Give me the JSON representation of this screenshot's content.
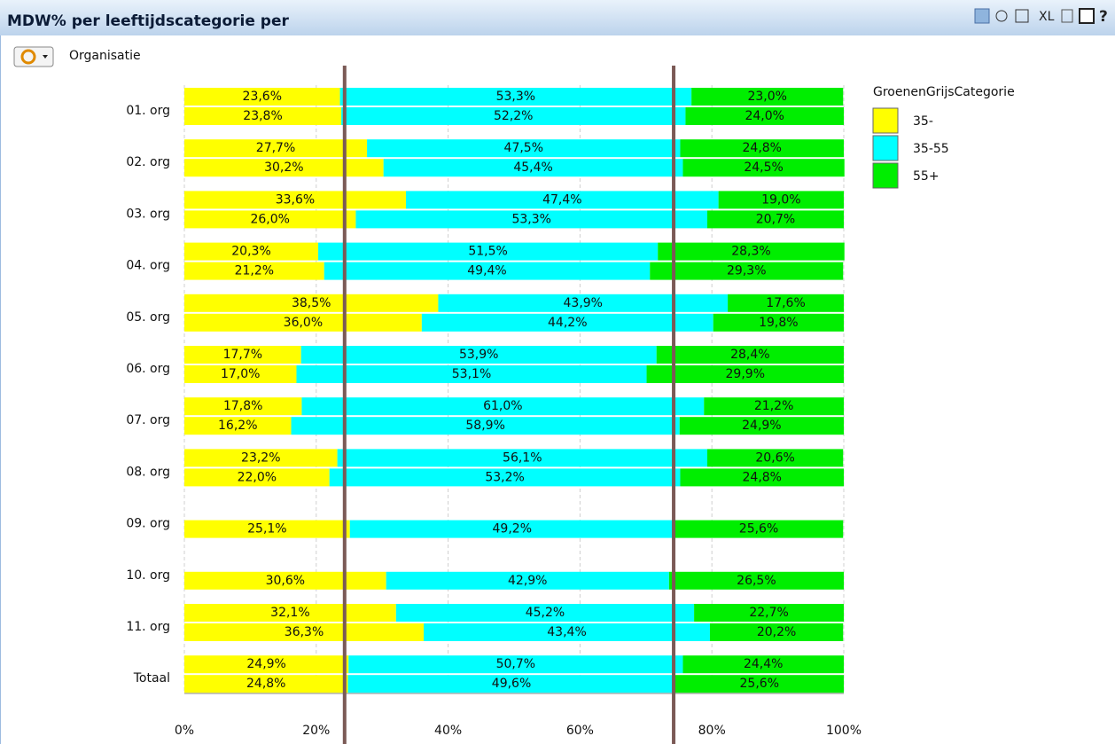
{
  "header": {
    "title": "MDW% per leeftijdscategorie per",
    "icons": [
      "XL",
      "?"
    ]
  },
  "toolbar": {
    "dimension": "Organisatie"
  },
  "chart_data": {
    "type": "stacked-bar-horizontal",
    "categories": [
      "01. org",
      "02. org",
      "03. org",
      "04. org",
      "05. org",
      "06. org",
      "07. org",
      "08. org",
      "09. org",
      "10. org",
      "11. org",
      "Totaal"
    ],
    "legend_title": "GroenenGrijsCategorie",
    "legend_position": "right",
    "grid": true,
    "xlim": [
      0,
      100
    ],
    "xticks": [
      {
        "value": 0,
        "label": "0%"
      },
      {
        "value": 20,
        "label": "20%"
      },
      {
        "value": 40,
        "label": "40%"
      },
      {
        "value": 60,
        "label": "60%"
      },
      {
        "value": 80,
        "label": "80%"
      },
      {
        "value": 100,
        "label": "100%"
      }
    ],
    "reference_lines": {
      "color": "#7b5a56",
      "values": [
        24.3,
        74.2
      ]
    },
    "series": [
      {
        "name": "35-",
        "color": "#ffff00",
        "values": [
          [
            23.6,
            23.8
          ],
          [
            27.7,
            30.2
          ],
          [
            33.6,
            26.0
          ],
          [
            20.3,
            21.2
          ],
          [
            38.5,
            36.0
          ],
          [
            17.7,
            17.0
          ],
          [
            17.8,
            16.2
          ],
          [
            23.2,
            22.0
          ],
          [
            null,
            25.1
          ],
          [
            null,
            30.6
          ],
          [
            32.1,
            36.3
          ],
          [
            24.9,
            24.8
          ]
        ],
        "value_labels": [
          [
            "23,6%",
            "23,8%"
          ],
          [
            "27,7%",
            "30,2%"
          ],
          [
            "33,6%",
            "26,0%"
          ],
          [
            "20,3%",
            "21,2%"
          ],
          [
            "38,5%",
            "36,0%"
          ],
          [
            "17,7%",
            "17,0%"
          ],
          [
            "17,8%",
            "16,2%"
          ],
          [
            "23,2%",
            "22,0%"
          ],
          [
            null,
            "25,1%"
          ],
          [
            null,
            "30,6%"
          ],
          [
            "32,1%",
            "36,3%"
          ],
          [
            "24,9%",
            "24,8%"
          ]
        ]
      },
      {
        "name": "35-55",
        "color": "#00ffff",
        "values": [
          [
            53.3,
            52.2
          ],
          [
            47.5,
            45.4
          ],
          [
            47.4,
            53.3
          ],
          [
            51.5,
            49.4
          ],
          [
            43.9,
            44.2
          ],
          [
            53.9,
            53.1
          ],
          [
            61.0,
            58.9
          ],
          [
            56.1,
            53.2
          ],
          [
            null,
            49.2
          ],
          [
            null,
            42.9
          ],
          [
            45.2,
            43.4
          ],
          [
            50.7,
            49.6
          ]
        ],
        "value_labels": [
          [
            "53,3%",
            "52,2%"
          ],
          [
            "47,5%",
            "45,4%"
          ],
          [
            "47,4%",
            "53,3%"
          ],
          [
            "51,5%",
            "49,4%"
          ],
          [
            "43,9%",
            "44,2%"
          ],
          [
            "53,9%",
            "53,1%"
          ],
          [
            "61,0%",
            "58,9%"
          ],
          [
            "56,1%",
            "53,2%"
          ],
          [
            null,
            "49,2%"
          ],
          [
            null,
            "42,9%"
          ],
          [
            "45,2%",
            "43,4%"
          ],
          [
            "50,7%",
            "49,6%"
          ]
        ]
      },
      {
        "name": "55+",
        "color": "#00ee00",
        "values": [
          [
            23.0,
            24.0
          ],
          [
            24.8,
            24.5
          ],
          [
            19.0,
            20.7
          ],
          [
            28.3,
            29.3
          ],
          [
            17.6,
            19.8
          ],
          [
            28.4,
            29.9
          ],
          [
            21.2,
            24.9
          ],
          [
            20.6,
            24.8
          ],
          [
            null,
            25.6
          ],
          [
            null,
            26.5
          ],
          [
            22.7,
            20.2
          ],
          [
            24.4,
            25.6
          ]
        ],
        "value_labels": [
          [
            "23,0%",
            "24,0%"
          ],
          [
            "24,8%",
            "24,5%"
          ],
          [
            "19,0%",
            "20,7%"
          ],
          [
            "28,3%",
            "29,3%"
          ],
          [
            "17,6%",
            "19,8%"
          ],
          [
            "28,4%",
            "29,9%"
          ],
          [
            "21,2%",
            "24,9%"
          ],
          [
            "20,6%",
            "24,8%"
          ],
          [
            null,
            "25,6%"
          ],
          [
            null,
            "26,5%"
          ],
          [
            "22,7%",
            "20,2%"
          ],
          [
            "24,4%",
            "25,6%"
          ]
        ]
      }
    ]
  }
}
